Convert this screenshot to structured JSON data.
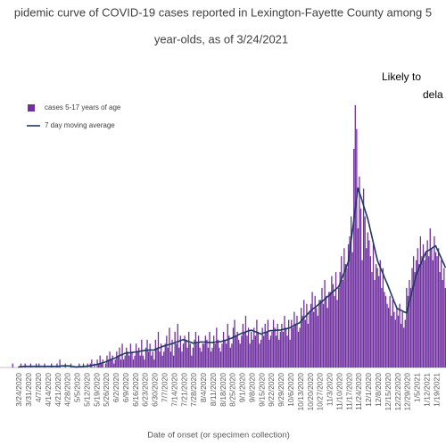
{
  "chart_data": {
    "type": "bar",
    "title": [
      "pidemic curve of COVID-19 cases reported in Lexington-Fayette County among 5",
      "year-olds, as of 3/24/2021"
    ],
    "annotations": [
      "Likely to",
      "dela"
    ],
    "x_label": "Date of onset (or specimen collection)",
    "ylim": [
      0,
      70
    ],
    "categories": [
      null,
      null,
      null,
      null,
      null,
      null,
      null,
      "3/24/2020",
      null,
      null,
      null,
      null,
      null,
      null,
      "3/31/2020",
      null,
      null,
      null,
      null,
      null,
      null,
      "4/7/2020",
      null,
      null,
      null,
      null,
      null,
      null,
      "4/14/2020",
      null,
      null,
      null,
      null,
      null,
      null,
      "4/21/2020",
      null,
      null,
      null,
      null,
      null,
      null,
      "4/28/2020",
      null,
      null,
      null,
      null,
      null,
      null,
      "5/5/2020",
      null,
      null,
      null,
      null,
      null,
      null,
      "5/12/2020",
      null,
      null,
      null,
      null,
      null,
      null,
      "5/19/2020",
      null,
      null,
      null,
      null,
      null,
      null,
      "5/26/2020",
      null,
      null,
      null,
      null,
      null,
      null,
      "6/2/2020",
      null,
      null,
      null,
      null,
      null,
      null,
      "6/9/2020",
      null,
      null,
      null,
      null,
      null,
      null,
      "6/16/2020",
      null,
      null,
      null,
      null,
      null,
      null,
      "6/23/2020",
      null,
      null,
      null,
      null,
      null,
      null,
      "6/30/2020",
      null,
      null,
      null,
      null,
      null,
      null,
      "7/7/2020",
      null,
      null,
      null,
      null,
      null,
      null,
      "7/14/2020",
      null,
      null,
      null,
      null,
      null,
      null,
      "7/21/2020",
      null,
      null,
      null,
      null,
      null,
      null,
      "7/28/2020",
      null,
      null,
      null,
      null,
      null,
      null,
      "8/4/2020",
      null,
      null,
      null,
      null,
      null,
      null,
      "8/11/2020",
      null,
      null,
      null,
      null,
      null,
      null,
      "8/18/2020",
      null,
      null,
      null,
      null,
      null,
      null,
      "8/25/2020",
      null,
      null,
      null,
      null,
      null,
      null,
      "9/1/2020",
      null,
      null,
      null,
      null,
      null,
      null,
      "9/8/2020",
      null,
      null,
      null,
      null,
      null,
      null,
      "9/15/2020",
      null,
      null,
      null,
      null,
      null,
      null,
      "9/22/2020",
      null,
      null,
      null,
      null,
      null,
      null,
      "9/29/2020",
      null,
      null,
      null,
      null,
      null,
      null,
      "10/6/2020",
      null,
      null,
      null,
      null,
      null,
      null,
      "10/13/2020",
      null,
      null,
      null,
      null,
      null,
      null,
      "10/20/2020",
      null,
      null,
      null,
      null,
      null,
      null,
      "10/27/2020",
      null,
      null,
      null,
      null,
      null,
      null,
      "11/3/2020",
      null,
      null,
      null,
      null,
      null,
      null,
      "11/10/2020",
      null,
      null,
      null,
      null,
      null,
      null,
      "11/17/2020",
      null,
      null,
      null,
      null,
      null,
      null,
      "11/24/2020",
      null,
      null,
      null,
      null,
      null,
      null,
      "12/1/2020",
      null,
      null,
      null,
      null,
      null,
      null,
      "12/8/2020",
      null,
      null,
      null,
      null,
      null,
      null,
      "12/15/2020",
      null,
      null,
      null,
      null,
      null,
      null,
      "12/22/2020",
      null,
      null,
      null,
      null,
      null,
      null,
      "12/29/2020",
      null,
      null,
      null,
      null,
      null,
      null,
      "1/5/2021",
      null,
      null,
      null,
      null,
      null,
      null,
      "1/12/2021",
      null,
      null,
      null,
      null,
      null,
      null,
      "1/19/2021",
      null,
      null,
      null,
      null,
      null,
      null
    ],
    "series": [
      {
        "name": "cases 5-17 years of age",
        "color": "#7030a0",
        "type": "bar",
        "values": [
          0,
          0,
          1,
          0,
          0,
          0,
          0,
          0,
          1,
          0,
          0,
          1,
          0,
          0,
          0,
          1,
          0,
          0,
          0,
          1,
          0,
          1,
          0,
          0,
          0,
          1,
          0,
          0,
          0,
          0,
          1,
          0,
          0,
          0,
          1,
          0,
          2,
          0,
          0,
          0,
          1,
          0,
          0,
          0,
          1,
          0,
          0,
          0,
          0,
          0,
          1,
          0,
          0,
          1,
          0,
          0,
          1,
          0,
          1,
          2,
          0,
          1,
          0,
          2,
          1,
          3,
          1,
          2,
          0,
          1,
          3,
          2,
          4,
          2,
          3,
          1,
          2,
          4,
          3,
          5,
          2,
          6,
          2,
          3,
          5,
          4,
          3,
          6,
          4,
          2,
          3,
          6,
          4,
          5,
          3,
          7,
          3,
          2,
          5,
          7,
          4,
          6,
          3,
          4,
          2,
          7,
          5,
          9,
          4,
          6,
          3,
          4,
          6,
          8,
          5,
          10,
          4,
          7,
          3,
          9,
          6,
          11,
          5,
          8,
          4,
          6,
          8,
          7,
          5,
          9,
          6,
          3,
          5,
          7,
          9,
          6,
          8,
          5,
          4,
          6,
          6,
          8,
          7,
          5,
          9,
          4,
          5,
          8,
          6,
          10,
          7,
          5,
          4,
          6,
          9,
          7,
          6,
          11,
          8,
          5,
          6,
          10,
          12,
          8,
          9,
          7,
          6,
          8,
          11,
          9,
          13,
          8,
          10,
          6,
          9,
          7,
          10,
          8,
          12,
          9,
          6,
          7,
          10,
          8,
          11,
          9,
          12,
          7,
          8,
          9,
          12,
          10,
          8,
          11,
          7,
          9,
          11,
          9,
          13,
          10,
          8,
          12,
          7,
          12,
          10,
          14,
          11,
          13,
          9,
          10,
          15,
          13,
          17,
          12,
          16,
          11,
          14,
          16,
          19,
          14,
          18,
          15,
          13,
          17,
          17,
          20,
          16,
          22,
          18,
          15,
          19,
          19,
          23,
          21,
          18,
          24,
          17,
          20,
          24,
          28,
          22,
          30,
          26,
          25,
          31,
          33,
          38,
          29,
          55,
          66,
          60,
          35,
          48,
          40,
          27,
          45,
          38,
          30,
          34,
          32,
          28,
          24,
          31,
          22,
          26,
          25,
          23,
          27,
          20,
          25,
          19,
          18,
          16,
          15,
          18,
          13,
          17,
          14,
          12,
          15,
          13,
          16,
          11,
          14,
          10,
          12,
          20,
          18,
          22,
          20,
          25,
          28,
          24,
          27,
          30,
          26,
          33,
          28,
          31,
          27,
          29,
          32,
          28,
          35,
          30,
          27,
          33,
          29,
          28,
          30,
          24,
          27,
          22,
          25,
          20
        ]
      },
      {
        "name": "7 day moving average",
        "color": "#1f3864",
        "type": "line",
        "values": [
          null,
          null,
          null,
          null,
          null,
          null,
          0.1,
          0.2,
          0.2,
          0.2,
          0.3,
          0.3,
          0.3,
          0.3,
          0.3,
          0.3,
          0.3,
          0.3,
          0.3,
          0.3,
          0.3,
          0.3,
          0.3,
          0.3,
          0.3,
          0.3,
          0.3,
          0.3,
          0.3,
          0.3,
          0.3,
          0.3,
          0.3,
          0.3,
          0.3,
          0.3,
          0.3,
          0.4,
          0.4,
          0.4,
          0.4,
          0.4,
          0.4,
          0.4,
          0.3,
          0.3,
          0.2,
          0.2,
          0.1,
          0.2,
          0.2,
          0.2,
          0.2,
          0.3,
          0.3,
          0.3,
          0.4,
          0.4,
          0.5,
          0.5,
          0.6,
          0.7,
          0.7,
          0.8,
          0.9,
          1.0,
          1.1,
          1.2,
          1.3,
          1.4,
          1.6,
          1.7,
          1.9,
          2.0,
          2.2,
          2.3,
          2.4,
          2.6,
          2.8,
          3.0,
          3.1,
          3.3,
          3.4,
          3.6,
          3.6,
          3.7,
          3.7,
          3.7,
          3.8,
          3.8,
          3.9,
          3.9,
          4.0,
          4.0,
          4.1,
          4.2,
          4.2,
          4.3,
          4.3,
          4.3,
          4.4,
          4.4,
          4.4,
          4.4,
          4.4,
          4.6,
          4.7,
          4.9,
          5.0,
          5.1,
          5.3,
          5.4,
          5.5,
          5.6,
          5.7,
          5.8,
          5.9,
          6.0,
          6.1,
          6.3,
          6.4,
          6.5,
          6.6,
          6.8,
          6.9,
          7.0,
          6.9,
          6.8,
          6.6,
          6.5,
          6.4,
          6.3,
          6.1,
          6.2,
          6.2,
          6.3,
          6.3,
          6.4,
          6.4,
          6.4,
          6.4,
          6.4,
          6.4,
          6.3,
          6.3,
          6.3,
          6.3,
          6.3,
          6.4,
          6.4,
          6.4,
          6.5,
          6.5,
          6.6,
          6.7,
          6.8,
          6.9,
          7.0,
          7.2,
          7.3,
          7.4,
          7.6,
          7.8,
          7.9,
          8.1,
          8.3,
          8.4,
          8.6,
          8.7,
          8.8,
          8.9,
          9.1,
          9.2,
          9.3,
          9.4,
          9.3,
          9.1,
          9.0,
          8.9,
          8.7,
          8.6,
          8.4,
          8.5,
          8.7,
          8.8,
          8.9,
          9.0,
          9.2,
          9.3,
          9.3,
          9.3,
          9.3,
          9.4,
          9.4,
          9.4,
          9.4,
          9.5,
          9.6,
          9.7,
          9.7,
          9.8,
          9.9,
          10.0,
          10.2,
          10.4,
          10.6,
          10.8,
          11.0,
          11.1,
          11.3,
          11.7,
          12.1,
          12.5,
          12.8,
          13.2,
          13.6,
          14.0,
          14.3,
          14.6,
          14.9,
          15.1,
          15.4,
          15.7,
          16.0,
          16.3,
          16.6,
          16.9,
          17.2,
          17.5,
          17.8,
          18.1,
          18.4,
          18.8,
          19.1,
          19.4,
          19.7,
          20.0,
          20.3,
          21.2,
          22.1,
          23.0,
          23.9,
          24.8,
          25.7,
          26.6,
          29.2,
          31.9,
          34.5,
          37.2,
          39.9,
          42.5,
          45.1,
          44.0,
          43.0,
          41.9,
          40.7,
          39.6,
          38.5,
          37.4,
          35.9,
          34.4,
          32.9,
          31.4,
          29.9,
          28.4,
          26.9,
          26.0,
          25.2,
          24.4,
          23.6,
          22.7,
          21.9,
          21.1,
          20.2,
          19.3,
          18.4,
          17.5,
          16.6,
          15.8,
          14.9,
          14.7,
          14.5,
          14.4,
          14.2,
          14.0,
          13.9,
          13.7,
          15.1,
          16.5,
          17.9,
          19.2,
          20.6,
          22.0,
          23.4,
          24.2,
          25.1,
          25.9,
          26.7,
          27.5,
          28.3,
          29.1,
          29.3,
          29.5,
          29.7,
          29.9,
          30.2,
          30.4,
          30.6,
          29.8,
          29.0,
          28.3,
          27.5,
          26.7,
          26.0,
          25.1
        ]
      }
    ]
  }
}
